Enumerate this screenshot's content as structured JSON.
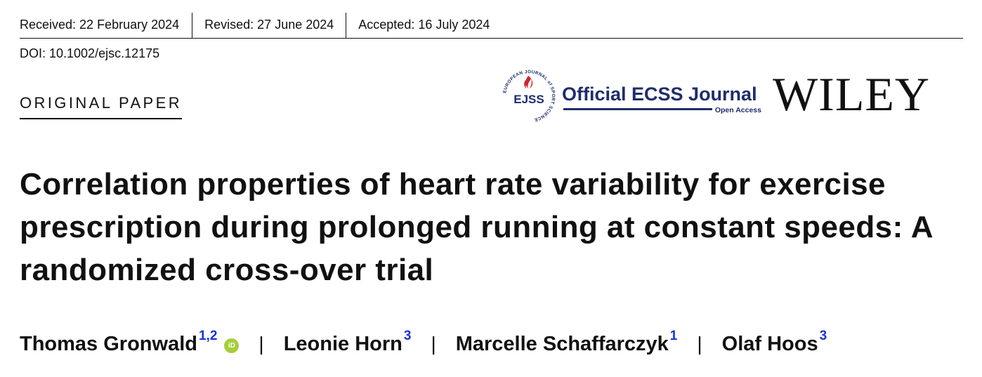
{
  "dates": {
    "received": "Received: 22 February 2024",
    "revised": "Revised: 27 June 2024",
    "accepted": "Accepted: 16 July 2024"
  },
  "doi": "DOI: 10.1002/ejsc.12175",
  "article_type": "ORIGINAL PAPER",
  "logos": {
    "ejss_seal_text": "EJSS",
    "ejss_ring_text": "EUROPEAN JOURNAL of SPORT SCIENCE",
    "ecss_title": "Official ECSS Journal",
    "ecss_subtitle": "Open Access",
    "publisher": "WILEY"
  },
  "title": "Correlation properties of heart rate variability for exercise prescription during prolonged running at constant speeds: A randomized cross-over trial",
  "authors": [
    {
      "name": "Thomas Gronwald",
      "affiliations": "1,2",
      "orcid": true
    },
    {
      "name": "Leonie Horn",
      "affiliations": "3",
      "orcid": false
    },
    {
      "name": "Marcelle Schaffarczyk",
      "affiliations": "1",
      "orcid": false
    },
    {
      "name": "Olaf Hoos",
      "affiliations": "3",
      "orcid": false
    }
  ],
  "author_separator": "|",
  "orcid_label": "iD",
  "colors": {
    "text": "#111111",
    "journal_blue": "#1f2d6b",
    "affiliation_link": "#1a33d6",
    "orcid_green": "#a6ce39",
    "seal_red": "#d2232a"
  }
}
